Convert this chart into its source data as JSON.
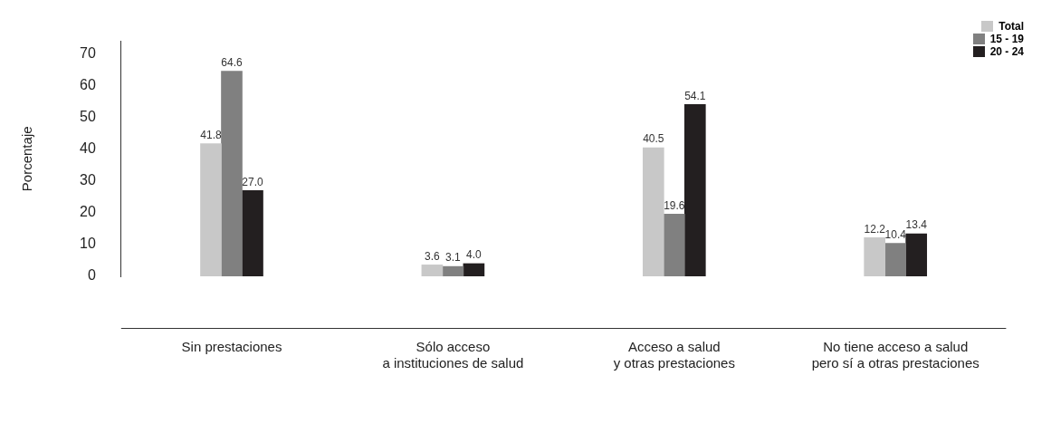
{
  "chart_data": {
    "type": "bar",
    "ylabel": "Porcentaje",
    "categories": [
      "Sin prestaciones",
      "Sólo acceso\na instituciones de salud",
      "Acceso a salud\ny otras prestaciones",
      "No tiene acceso a salud\npero sí a otras prestaciones"
    ],
    "series": [
      {
        "name": "Total",
        "color": "#c8c8c8",
        "values": [
          41.8,
          3.6,
          40.5,
          12.2
        ],
        "value_labels": [
          "41.8",
          "3.6",
          "40.5",
          "12.2"
        ]
      },
      {
        "name": "15 - 19",
        "color": "#808080",
        "values": [
          64.6,
          3.1,
          19.6,
          10.4
        ],
        "value_labels": [
          "64.6",
          "3.1",
          "19.6",
          "10.4"
        ]
      },
      {
        "name": "20 - 24",
        "color": "#231f20",
        "values": [
          27.0,
          4.0,
          54.1,
          13.4
        ],
        "value_labels": [
          "27.0",
          "4.0",
          "54.1",
          "13.4"
        ]
      }
    ],
    "ylim": [
      0,
      74
    ],
    "yticks": [
      0,
      10,
      20,
      30,
      40,
      50,
      60,
      70
    ],
    "grid": false,
    "legend": "top right"
  }
}
